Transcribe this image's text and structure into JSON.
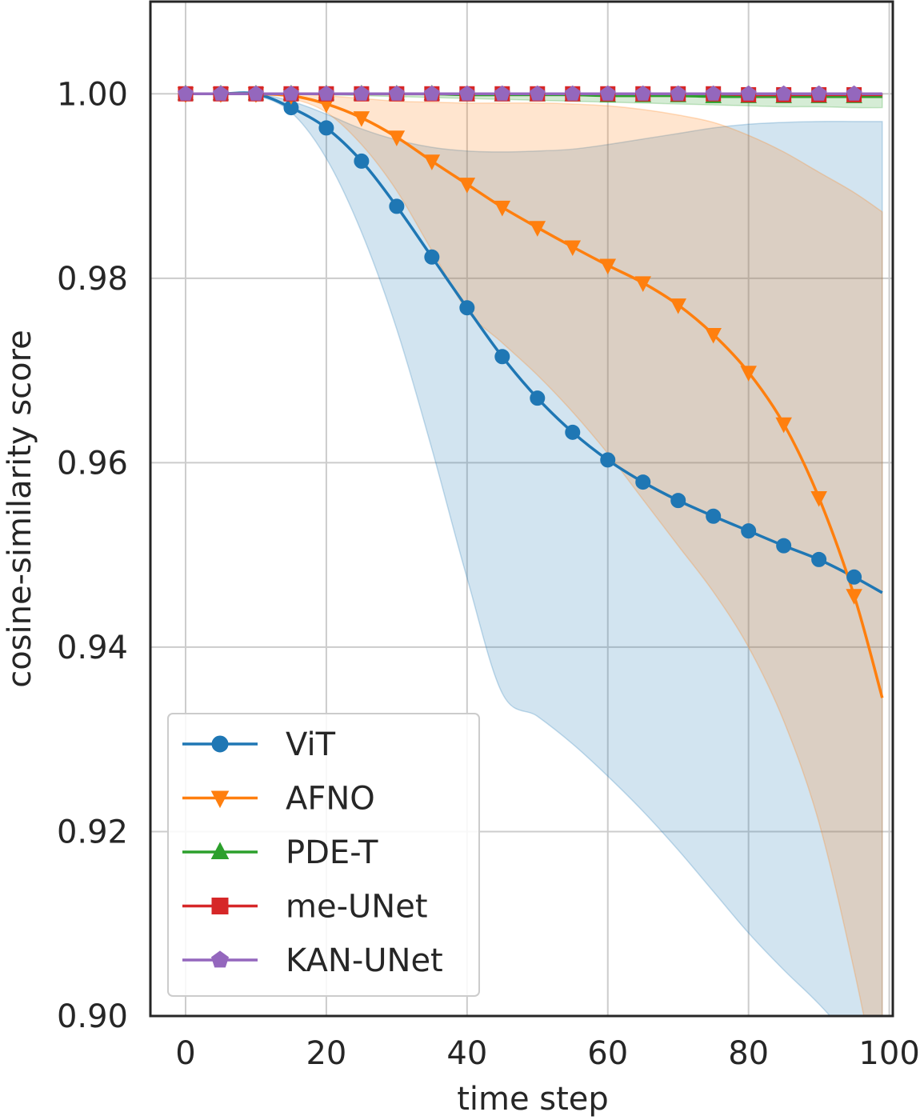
{
  "chart_data": {
    "type": "line",
    "title": "",
    "xlabel": "time step",
    "ylabel": "cosine-similarity score",
    "xlim": [
      -5,
      100.5
    ],
    "ylim": [
      0.9,
      1.01
    ],
    "xticks": [
      0,
      20,
      40,
      60,
      80,
      100
    ],
    "yticks": [
      0.9,
      0.92,
      0.94,
      0.96,
      0.98,
      1.0
    ],
    "xtick_labels": [
      "0",
      "20",
      "40",
      "60",
      "80",
      "100"
    ],
    "ytick_labels": [
      "0.90",
      "0.92",
      "0.94",
      "0.96",
      "0.98",
      "1.00"
    ],
    "grid": true,
    "legend_position": "lower-left",
    "x": [
      0,
      5,
      10,
      15,
      20,
      25,
      30,
      35,
      40,
      45,
      50,
      55,
      60,
      65,
      70,
      75,
      80,
      85,
      90,
      95,
      99
    ],
    "series": [
      {
        "name": "ViT",
        "color": "#1f77b4",
        "marker": "circle",
        "values": [
          1.0,
          1.0,
          1.0,
          0.9985,
          0.9963,
          0.9927,
          0.9878,
          0.9823,
          0.9768,
          0.9715,
          0.967,
          0.9633,
          0.9603,
          0.9579,
          0.9559,
          0.9542,
          0.9526,
          0.951,
          0.9495,
          0.9476,
          0.9459
        ],
        "band_lower": [
          1.0,
          1.0,
          0.9998,
          0.998,
          0.993,
          0.985,
          0.9745,
          0.9615,
          0.9475,
          0.935,
          0.9325,
          0.9295,
          0.926,
          0.9222,
          0.918,
          0.9135,
          0.909,
          0.905,
          0.9013,
          0.897,
          0.893
        ],
        "band_upper": [
          1.0,
          1.0,
          1.0,
          0.9992,
          0.9978,
          0.9962,
          0.995,
          0.9942,
          0.9938,
          0.9937,
          0.9938,
          0.994,
          0.9945,
          0.9951,
          0.9957,
          0.9963,
          0.9967,
          0.9969,
          0.997,
          0.997,
          0.997
        ]
      },
      {
        "name": "AFNO",
        "color": "#ff7f0e",
        "marker": "triangle-down",
        "values": [
          1.0,
          1.0,
          1.0,
          0.9998,
          0.9989,
          0.9974,
          0.9953,
          0.9927,
          0.9902,
          0.9877,
          0.9855,
          0.9834,
          0.9814,
          0.9795,
          0.9771,
          0.9739,
          0.9698,
          0.9642,
          0.9562,
          0.9456,
          0.9345
        ],
        "band_lower": [
          1.0,
          1.0,
          1.0,
          0.9995,
          0.998,
          0.9945,
          0.9895,
          0.983,
          0.9765,
          0.973,
          0.9695,
          0.9655,
          0.961,
          0.956,
          0.951,
          0.946,
          0.94,
          0.932,
          0.921,
          0.905,
          0.89
        ],
        "band_upper": [
          1.0,
          1.0,
          1.0,
          1.0,
          0.9998,
          0.9995,
          0.9992,
          0.9991,
          0.999,
          0.999,
          0.999,
          0.9989,
          0.9987,
          0.9983,
          0.9977,
          0.9969,
          0.9955,
          0.9937,
          0.9915,
          0.9893,
          0.9872
        ]
      },
      {
        "name": "PDE-T",
        "color": "#2ca02c",
        "marker": "triangle-up",
        "values": [
          1.0,
          1.0,
          1.0,
          1.0,
          1.0,
          1.0,
          1.0,
          1.0,
          0.9999,
          0.9999,
          0.9999,
          0.9999,
          0.9998,
          0.9998,
          0.9998,
          0.9997,
          0.9997,
          0.9997,
          0.9997,
          0.9997,
          0.9997
        ],
        "band_lower": [
          1.0,
          1.0,
          1.0,
          1.0,
          0.9999,
          0.9998,
          0.9997,
          0.9996,
          0.9995,
          0.9994,
          0.9993,
          0.9992,
          0.9991,
          0.999,
          0.9989,
          0.9988,
          0.9987,
          0.9986,
          0.9986,
          0.9985,
          0.9985
        ],
        "band_upper": [
          1.0,
          1.0,
          1.0,
          1.0,
          1.0,
          1.0,
          1.0,
          1.0,
          1.0,
          1.0,
          1.0,
          1.0,
          1.0,
          1.0,
          1.0,
          1.0,
          1.0,
          1.0,
          1.0,
          1.0,
          1.0
        ]
      },
      {
        "name": "me-UNet",
        "color": "#d62728",
        "marker": "square",
        "values": [
          1.0,
          1.0,
          1.0,
          1.0,
          1.0,
          1.0,
          1.0,
          1.0,
          1.0,
          1.0,
          1.0,
          1.0,
          1.0,
          1.0,
          1.0,
          1.0,
          0.9999,
          0.9999,
          0.9999,
          0.9999,
          0.9999
        ],
        "band_lower": [
          1.0,
          1.0,
          1.0,
          1.0,
          1.0,
          0.9999,
          0.9999,
          0.9999,
          0.9998,
          0.9998,
          0.9998,
          0.9998,
          0.9997,
          0.9997,
          0.9997,
          0.9997,
          0.9996,
          0.9996,
          0.9996,
          0.9996,
          0.9996
        ],
        "band_upper": [
          1.0,
          1.0,
          1.0,
          1.0,
          1.0,
          1.0,
          1.0,
          1.0,
          1.0,
          1.0,
          1.0,
          1.0,
          1.0,
          1.0,
          1.0,
          1.0,
          1.0,
          1.0,
          1.0,
          1.0,
          1.0
        ]
      },
      {
        "name": "KAN-UNet",
        "color": "#9467bd",
        "marker": "pentagon",
        "values": [
          1.0,
          1.0,
          1.0,
          1.0,
          1.0,
          1.0,
          1.0,
          1.0,
          1.0,
          1.0,
          1.0,
          1.0,
          1.0,
          1.0,
          1.0,
          1.0,
          1.0,
          1.0,
          1.0,
          1.0,
          1.0
        ],
        "band_lower": [
          1.0,
          1.0,
          1.0,
          1.0,
          1.0,
          1.0,
          1.0,
          1.0,
          0.9999,
          0.9999,
          0.9999,
          0.9999,
          0.9999,
          0.9999,
          0.9999,
          0.9999,
          0.9999,
          0.9999,
          0.9999,
          0.9999,
          0.9999
        ],
        "band_upper": [
          1.0,
          1.0,
          1.0,
          1.0,
          1.0,
          1.0,
          1.0,
          1.0,
          1.0,
          1.0,
          1.0,
          1.0,
          1.0,
          1.0,
          1.0,
          1.0,
          1.0,
          1.0,
          1.0,
          1.0,
          1.0
        ]
      }
    ]
  }
}
